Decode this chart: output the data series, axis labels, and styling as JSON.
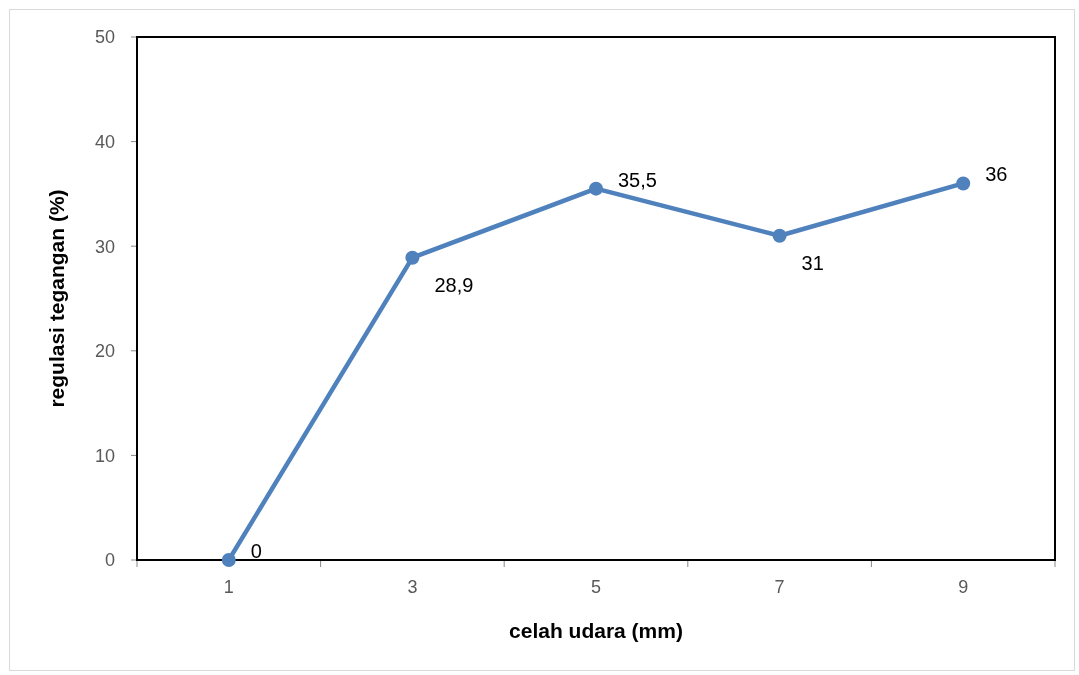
{
  "chart_data": {
    "type": "line",
    "xlabel": "celah udara (mm)",
    "ylabel": "regulasi tegangan (%)",
    "categories": [
      "1",
      "3",
      "5",
      "7",
      "9"
    ],
    "series": [
      {
        "color": "#4f81bd",
        "values": [
          0,
          28.9,
          35.5,
          31,
          36
        ],
        "value_labels": [
          "0",
          "28,9",
          "35,5",
          "31",
          "36"
        ]
      }
    ],
    "ylim": [
      0,
      50
    ],
    "yticks": [
      0,
      10,
      20,
      30,
      40,
      50
    ],
    "marker": "circle",
    "line_style": "solid"
  }
}
